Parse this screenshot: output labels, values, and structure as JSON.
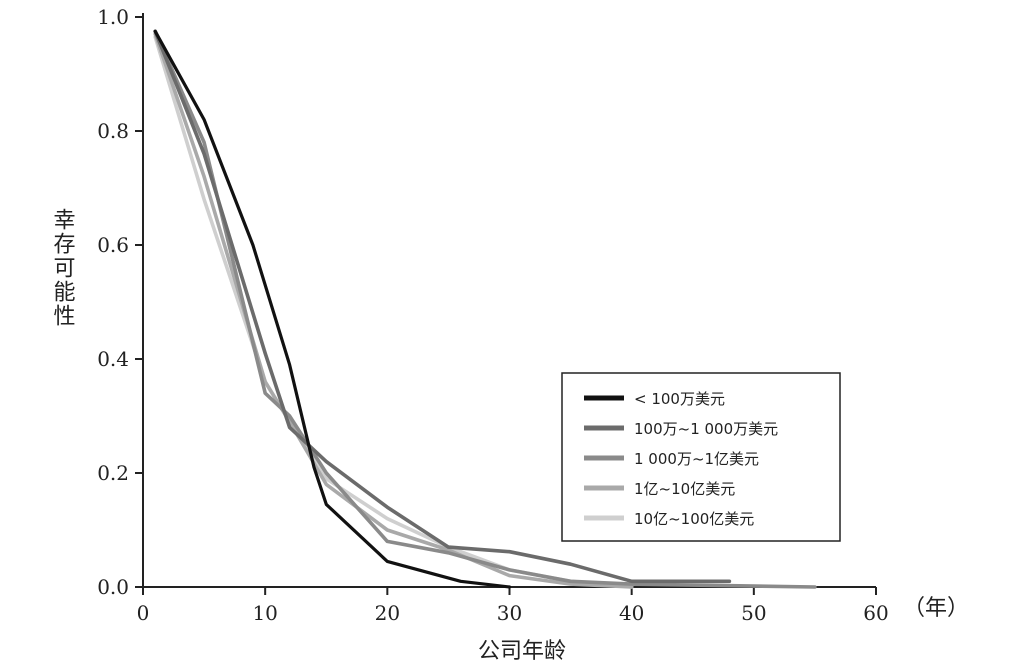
{
  "chart_data": {
    "type": "line",
    "title": "",
    "xlabel": "公司年龄",
    "x_unit": "（年）",
    "ylabel": "幸存可能性",
    "xlim": [
      0,
      60
    ],
    "ylim": [
      0,
      1.0
    ],
    "x_ticks": [
      "0",
      "10",
      "20",
      "30",
      "40",
      "50",
      "60"
    ],
    "y_ticks": [
      "0.0",
      "0.2",
      "0.4",
      "0.6",
      "0.8",
      "1.0"
    ],
    "grid": false,
    "legend_position": "center-right",
    "series": [
      {
        "name": "< 100万美元",
        "color": "#111111",
        "points": [
          [
            1,
            0.975
          ],
          [
            5,
            0.82
          ],
          [
            9,
            0.6
          ],
          [
            12,
            0.39
          ],
          [
            14,
            0.21
          ],
          [
            15,
            0.145
          ],
          [
            20,
            0.045
          ],
          [
            26,
            0.01
          ],
          [
            30,
            0.0
          ]
        ]
      },
      {
        "name": "100万~1 000万美元",
        "color": "#6b6b6b",
        "points": [
          [
            1,
            0.975
          ],
          [
            5,
            0.76
          ],
          [
            10,
            0.41
          ],
          [
            12,
            0.28
          ],
          [
            15,
            0.22
          ],
          [
            20,
            0.14
          ],
          [
            25,
            0.07
          ],
          [
            30,
            0.062
          ],
          [
            35,
            0.04
          ],
          [
            40,
            0.01
          ],
          [
            48,
            0.01
          ]
        ]
      },
      {
        "name": "1 000万~1亿美元",
        "color": "#8a8a8a",
        "points": [
          [
            1,
            0.975
          ],
          [
            5,
            0.78
          ],
          [
            10,
            0.34
          ],
          [
            12,
            0.3
          ],
          [
            15,
            0.2
          ],
          [
            20,
            0.08
          ],
          [
            25,
            0.06
          ],
          [
            30,
            0.03
          ],
          [
            35,
            0.01
          ],
          [
            40,
            0.005
          ],
          [
            55,
            0.0
          ]
        ]
      },
      {
        "name": "1亿~10亿美元",
        "color": "#a9a9a9",
        "points": [
          [
            1,
            0.97
          ],
          [
            5,
            0.72
          ],
          [
            10,
            0.36
          ],
          [
            12,
            0.29
          ],
          [
            15,
            0.18
          ],
          [
            20,
            0.1
          ],
          [
            25,
            0.065
          ],
          [
            30,
            0.02
          ],
          [
            35,
            0.005
          ],
          [
            40,
            0.0
          ]
        ]
      },
      {
        "name": "10亿~100亿美元",
        "color": "#cfcfcf",
        "points": [
          [
            1,
            0.965
          ],
          [
            5,
            0.68
          ],
          [
            10,
            0.36
          ],
          [
            12,
            0.29
          ],
          [
            15,
            0.19
          ],
          [
            20,
            0.12
          ],
          [
            25,
            0.07
          ],
          [
            30,
            0.03
          ],
          [
            35,
            0.01
          ],
          [
            40,
            0.0
          ]
        ]
      }
    ]
  }
}
